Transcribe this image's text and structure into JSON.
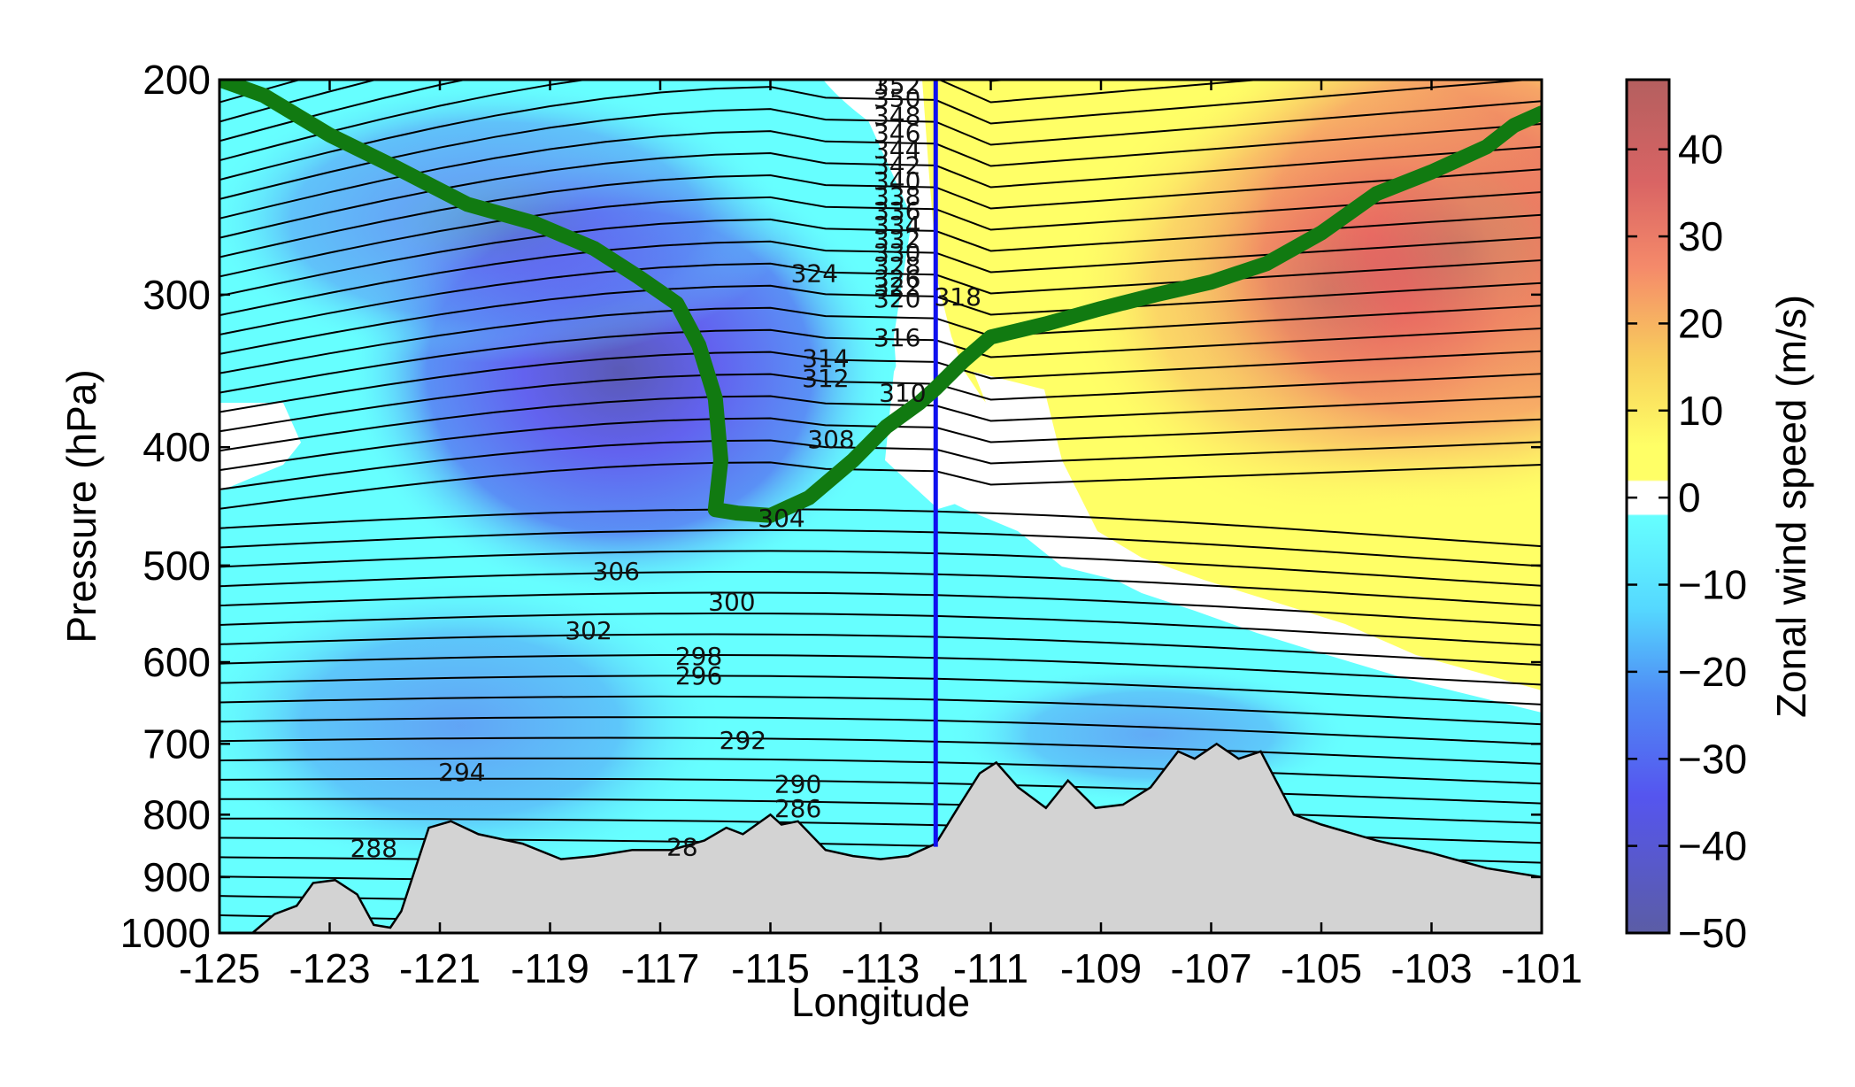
{
  "chart_data": {
    "type": "heatmap",
    "xlabel": "Longitude",
    "ylabel": "Pressure (hPa)",
    "xlim": [
      -125,
      -101
    ],
    "ylim": [
      1000,
      200
    ],
    "y_scale": "log",
    "x_ticks": [
      "-125",
      "-123",
      "-121",
      "-119",
      "-117",
      "-115",
      "-113",
      "-111",
      "-109",
      "-107",
      "-105",
      "-103",
      "-101"
    ],
    "y_ticks": [
      "200",
      "300",
      "400",
      "500",
      "600",
      "700",
      "800",
      "900",
      "1000"
    ],
    "colorbar": {
      "label": "Zonal wind speed (m/s)",
      "range": [
        -50,
        48
      ],
      "ticks": [
        "40",
        "30",
        "20",
        "10",
        "0",
        "−10",
        "−20",
        "−30",
        "−40",
        "−50"
      ]
    },
    "colors": {
      "strong_easterly": "#5a5fc8",
      "easterly": "#6e6ef0",
      "weak_easterly": "#66ffff",
      "calm": "#ffffff",
      "weak_westerly": "#ffff66",
      "westerly": "#f5b060",
      "strong_westerly": "#c0605a",
      "terrain": "#d3d3d3",
      "tropopause_line": "#117a11",
      "section_line": "#1010ee"
    },
    "vertical_line_lon": -112,
    "contour_labels": [
      "352",
      "350",
      "348",
      "346",
      "344",
      "342",
      "340",
      "338",
      "336",
      "334",
      "332",
      "330",
      "328",
      "326",
      "324",
      "322",
      "320",
      "318",
      "316",
      "314",
      "312",
      "310",
      "308",
      "306",
      "304",
      "302",
      "300",
      "298",
      "296",
      "294",
      "292",
      "290",
      "288",
      "286",
      "28"
    ],
    "tropopause_line": {
      "points": [
        {
          "x": -125,
          "y": 200
        },
        {
          "x": -124.2,
          "y": 206
        },
        {
          "x": -123,
          "y": 222
        },
        {
          "x": -121.8,
          "y": 236
        },
        {
          "x": -120.5,
          "y": 253
        },
        {
          "x": -119.3,
          "y": 262
        },
        {
          "x": -118.2,
          "y": 275
        },
        {
          "x": -117.4,
          "y": 290
        },
        {
          "x": -116.7,
          "y": 305
        },
        {
          "x": -116.3,
          "y": 330
        },
        {
          "x": -116.0,
          "y": 365
        },
        {
          "x": -115.9,
          "y": 410
        },
        {
          "x": -116.0,
          "y": 450
        },
        {
          "x": -115.6,
          "y": 453
        },
        {
          "x": -115.0,
          "y": 455
        },
        {
          "x": -114.3,
          "y": 440
        },
        {
          "x": -113.5,
          "y": 410
        },
        {
          "x": -112.9,
          "y": 385
        },
        {
          "x": -112.3,
          "y": 368
        },
        {
          "x": -112.0,
          "y": 358
        },
        {
          "x": -111.5,
          "y": 340
        },
        {
          "x": -111.0,
          "y": 325
        },
        {
          "x": -110.0,
          "y": 317
        },
        {
          "x": -109.0,
          "y": 308
        },
        {
          "x": -108.0,
          "y": 300
        },
        {
          "x": -107.0,
          "y": 293
        },
        {
          "x": -106.0,
          "y": 283
        },
        {
          "x": -105.0,
          "y": 267
        },
        {
          "x": -104.0,
          "y": 248
        },
        {
          "x": -103.0,
          "y": 238
        },
        {
          "x": -102.0,
          "y": 227
        },
        {
          "x": -101.5,
          "y": 218
        },
        {
          "x": -101,
          "y": 213
        }
      ]
    },
    "terrain_pressure_hpa": [
      {
        "x": -124.4,
        "y": 1000
      },
      {
        "x": -124.0,
        "y": 965
      },
      {
        "x": -123.6,
        "y": 950
      },
      {
        "x": -123.3,
        "y": 910
      },
      {
        "x": -122.9,
        "y": 905
      },
      {
        "x": -122.5,
        "y": 930
      },
      {
        "x": -122.2,
        "y": 985
      },
      {
        "x": -121.9,
        "y": 990
      },
      {
        "x": -121.7,
        "y": 960
      },
      {
        "x": -121.2,
        "y": 820
      },
      {
        "x": -120.8,
        "y": 810
      },
      {
        "x": -120.3,
        "y": 830
      },
      {
        "x": -119.5,
        "y": 845
      },
      {
        "x": -118.8,
        "y": 870
      },
      {
        "x": -118.2,
        "y": 865
      },
      {
        "x": -117.5,
        "y": 855
      },
      {
        "x": -116.8,
        "y": 855
      },
      {
        "x": -116.2,
        "y": 840
      },
      {
        "x": -115.8,
        "y": 820
      },
      {
        "x": -115.5,
        "y": 830
      },
      {
        "x": -115.0,
        "y": 800
      },
      {
        "x": -114.8,
        "y": 815
      },
      {
        "x": -114.5,
        "y": 810
      },
      {
        "x": -114.0,
        "y": 855
      },
      {
        "x": -113.5,
        "y": 865
      },
      {
        "x": -113.0,
        "y": 870
      },
      {
        "x": -112.5,
        "y": 865
      },
      {
        "x": -112.0,
        "y": 845
      },
      {
        "x": -111.6,
        "y": 790
      },
      {
        "x": -111.2,
        "y": 740
      },
      {
        "x": -110.9,
        "y": 725
      },
      {
        "x": -110.5,
        "y": 760
      },
      {
        "x": -110.0,
        "y": 790
      },
      {
        "x": -109.6,
        "y": 750
      },
      {
        "x": -109.1,
        "y": 790
      },
      {
        "x": -108.6,
        "y": 785
      },
      {
        "x": -108.1,
        "y": 760
      },
      {
        "x": -107.6,
        "y": 710
      },
      {
        "x": -107.3,
        "y": 720
      },
      {
        "x": -106.9,
        "y": 700
      },
      {
        "x": -106.5,
        "y": 720
      },
      {
        "x": -106.1,
        "y": 710
      },
      {
        "x": -105.5,
        "y": 800
      },
      {
        "x": -105.0,
        "y": 815
      },
      {
        "x": -104.0,
        "y": 840
      },
      {
        "x": -103.0,
        "y": 860
      },
      {
        "x": -102.0,
        "y": 885
      },
      {
        "x": -101.0,
        "y": 900
      }
    ]
  }
}
